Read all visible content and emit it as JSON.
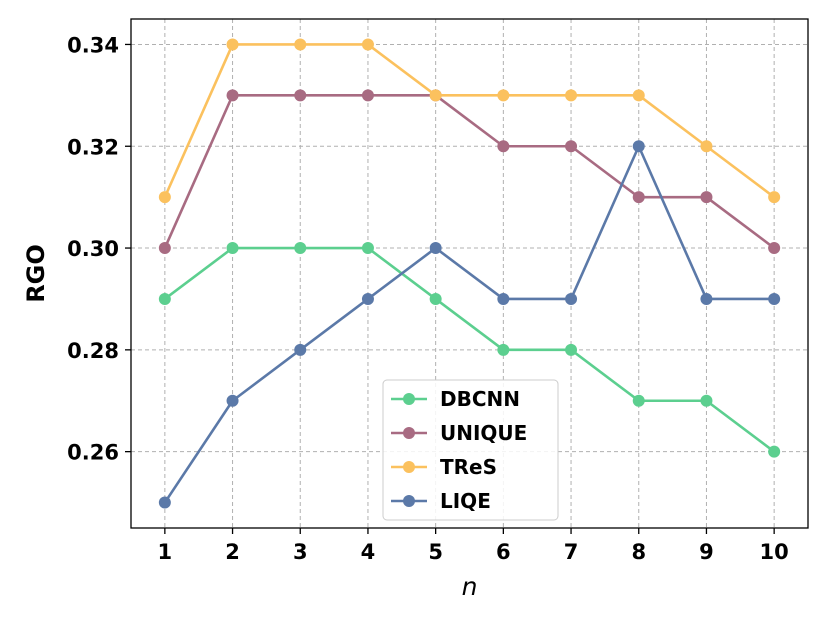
{
  "chart_data": {
    "type": "line",
    "x": [
      1,
      2,
      3,
      4,
      5,
      6,
      7,
      8,
      9,
      10
    ],
    "xlabel": "n",
    "ylabel": "RGO",
    "ylim": [
      0.245,
      0.345
    ],
    "xlim": [
      0.5,
      10.5
    ],
    "yticks": [
      0.26,
      0.28,
      0.3,
      0.32,
      0.34
    ],
    "ytick_labels": [
      "0.26",
      "0.28",
      "0.30",
      "0.32",
      "0.34"
    ],
    "xtick_labels": [
      "1",
      "2",
      "3",
      "4",
      "5",
      "6",
      "7",
      "8",
      "9",
      "10"
    ],
    "grid": true,
    "legend_position": "lower-center",
    "series": [
      {
        "name": "DBCNN",
        "color": "#5ccf8f",
        "values": [
          0.29,
          0.3,
          0.3,
          0.3,
          0.29,
          0.28,
          0.28,
          0.27,
          0.27,
          0.26
        ]
      },
      {
        "name": "UNIQUE",
        "color": "#a86b82",
        "values": [
          0.3,
          0.33,
          0.33,
          0.33,
          0.33,
          0.32,
          0.32,
          0.31,
          0.31,
          0.3
        ]
      },
      {
        "name": "TReS",
        "color": "#fbc15e",
        "values": [
          0.31,
          0.34,
          0.34,
          0.34,
          0.33,
          0.33,
          0.33,
          0.33,
          0.32,
          0.31
        ]
      },
      {
        "name": "LIQE",
        "color": "#5b79a8",
        "values": [
          0.25,
          0.27,
          0.28,
          0.29,
          0.3,
          0.29,
          0.29,
          0.32,
          0.29,
          0.29
        ]
      }
    ]
  }
}
